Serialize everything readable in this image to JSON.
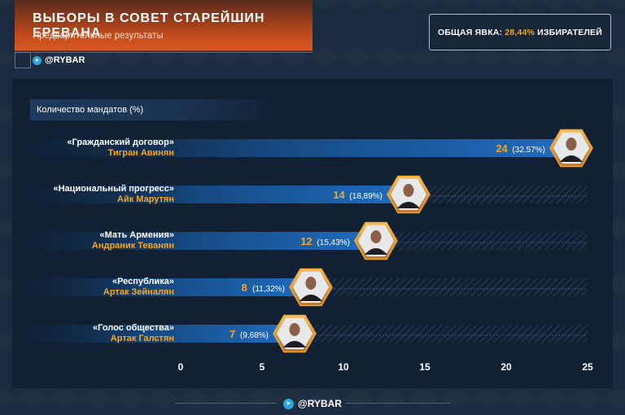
{
  "header": {
    "title": "ВЫБОРЫ В СОВЕТ СТАРЕЙШИН ЕРЕВАНА",
    "subtitle": "Предварительные результаты"
  },
  "brand": {
    "name": "@RYBAR",
    "icon": "telegram-icon"
  },
  "turnout": {
    "label": "ОБЩАЯ ЯВКА:",
    "value": "28,44%",
    "suffix": "ИЗБИРАТЕЛЕЙ"
  },
  "colors": {
    "accent": "#f5a623",
    "bar": "#1a5fa8",
    "background": "#1c2c40",
    "panel": "#112033",
    "header": "#c24a1c"
  },
  "chart_data": {
    "type": "bar",
    "orientation": "horizontal",
    "title": "Количество мандатов (%)",
    "categories": [
      "«Гражданский договор»",
      "«Национальный прогресс»",
      "«Мать Армения»",
      "«Республика»",
      "«Голос общества»"
    ],
    "leaders": [
      "Тигран Авинян",
      "Айк Марутян",
      "Андраник Теванян",
      "Артак Зейналян",
      "Артак Галстян"
    ],
    "values": [
      24,
      14,
      12,
      8,
      7
    ],
    "value_labels": [
      "24",
      "14",
      "12",
      "8",
      "7"
    ],
    "percent_labels": [
      "(32.57%)",
      "(18,89%)",
      "(15,43%)",
      "(11,32%)",
      "(9,68%)"
    ],
    "x_ticks": [
      0,
      5,
      10,
      15,
      20,
      25
    ],
    "x_tick_labels": [
      "0",
      "5",
      "10",
      "15",
      "20",
      "25"
    ],
    "xlim": [
      0,
      25
    ],
    "grid": false,
    "legend": "none"
  }
}
